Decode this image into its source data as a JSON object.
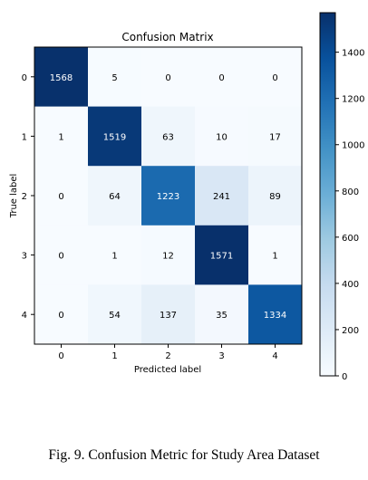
{
  "caption": "Fig. 9. Confusion Metric for Study Area Dataset",
  "chart_data": {
    "type": "heatmap",
    "title": "Confusion Matrix",
    "xlabel": "Predicted label",
    "ylabel": "True label",
    "x_categories": [
      "0",
      "1",
      "2",
      "3",
      "4"
    ],
    "y_categories": [
      "0",
      "1",
      "2",
      "3",
      "4"
    ],
    "matrix": [
      [
        1568,
        5,
        0,
        0,
        0
      ],
      [
        1,
        1519,
        63,
        10,
        17
      ],
      [
        0,
        64,
        1223,
        241,
        89
      ],
      [
        0,
        1,
        12,
        1571,
        1
      ],
      [
        0,
        54,
        137,
        35,
        1334
      ]
    ],
    "colormap": "Blues",
    "colors": {
      "low": "#f7fbff",
      "high": "#08306b"
    },
    "colorbar": {
      "min": 0,
      "max": 1571,
      "ticks": [
        0,
        200,
        400,
        600,
        800,
        1000,
        1200,
        1400
      ]
    },
    "grid": false
  }
}
